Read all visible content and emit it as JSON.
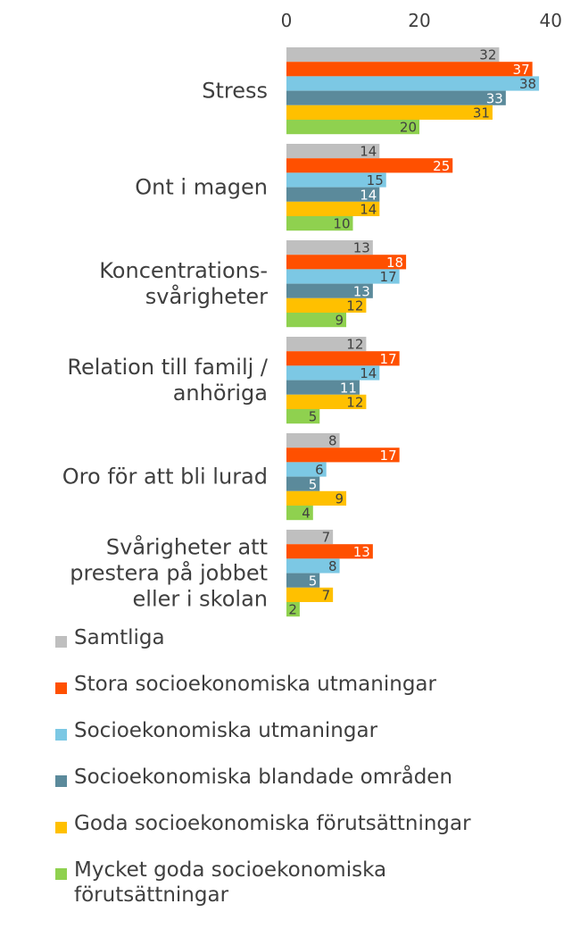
{
  "chart_data": {
    "type": "bar",
    "orientation": "horizontal",
    "xlim": [
      0,
      40
    ],
    "xticks": [
      "0",
      "20",
      "40"
    ],
    "grid": false,
    "legend_position": "bottom",
    "categories": [
      "Stress",
      "Ont i magen",
      "Koncentrations-\nsvårigheter",
      "Relation till familj /\nanhöriga",
      "Oro för att bli lurad",
      "Svårigheter att\nprestera på jobbet\neller i skolan"
    ],
    "series": [
      {
        "name": "Samtliga",
        "color": "#bfbfbf",
        "label_color": "#404040",
        "values": [
          32,
          14,
          13,
          12,
          8,
          7
        ]
      },
      {
        "name": "Stora socioekonomiska utmaningar",
        "color": "#ff5000",
        "label_color": "#ffffff",
        "values": [
          37,
          25,
          18,
          17,
          17,
          13
        ]
      },
      {
        "name": "Socioekonomiska utmaningar",
        "color": "#7cc8e4",
        "label_color": "#404040",
        "values": [
          38,
          15,
          17,
          14,
          6,
          8
        ]
      },
      {
        "name": "Socioekonomiska blandade områden",
        "color": "#5b8a9b",
        "label_color": "#ffffff",
        "values": [
          33,
          14,
          13,
          11,
          5,
          5
        ]
      },
      {
        "name": "Goda socioekonomiska förutsättningar",
        "color": "#ffc000",
        "label_color": "#404040",
        "values": [
          31,
          14,
          12,
          12,
          9,
          7
        ]
      },
      {
        "name": "Mycket goda socioekonomiska\nförutsättningar",
        "color": "#8fd14f",
        "label_color": "#404040",
        "values": [
          20,
          10,
          9,
          5,
          4,
          2
        ]
      }
    ]
  }
}
